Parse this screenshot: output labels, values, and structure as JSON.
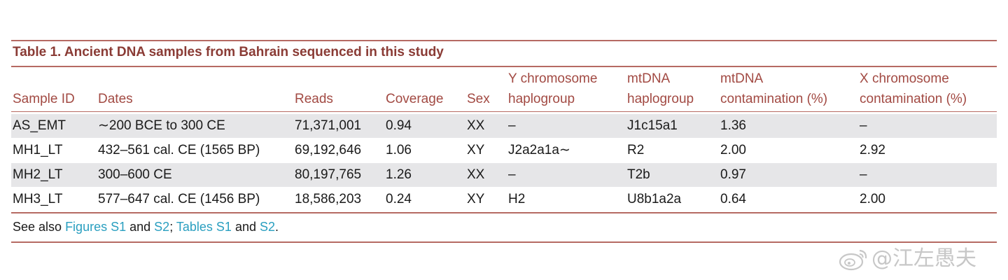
{
  "table": {
    "title": "Table 1.  Ancient DNA samples from Bahrain sequenced in this study",
    "headers": {
      "sample_id": "Sample ID",
      "dates": "Dates",
      "reads": "Reads",
      "coverage": "Coverage",
      "sex": "Sex",
      "y_line1": "Y chromosome",
      "y_line2": "haplogroup",
      "mt_line1": "mtDNA",
      "mt_line2": "haplogroup",
      "mtc_line1": "mtDNA",
      "mtc_line2": "contamination (%)",
      "xc_line1": "X chromosome",
      "xc_line2": "contamination (%)"
    },
    "rows": [
      {
        "sample_id": "AS_EMT",
        "dates": "∼200 BCE to 300 CE",
        "reads": "71,371,001",
        "coverage": "0.94",
        "sex": "XX",
        "y_haplogroup": "–",
        "mt_haplogroup": "J1c15a1",
        "mt_contamination": "1.36",
        "x_contamination": "–"
      },
      {
        "sample_id": "MH1_LT",
        "dates": "432–561 cal. CE (1565 BP)",
        "reads": "69,192,646",
        "coverage": "1.06",
        "sex": "XY",
        "y_haplogroup": "J2a2a1a∼",
        "mt_haplogroup": "R2",
        "mt_contamination": "2.00",
        "x_contamination": "2.92"
      },
      {
        "sample_id": "MH2_LT",
        "dates": "300–600 CE",
        "reads": "80,197,765",
        "coverage": "1.26",
        "sex": "XX",
        "y_haplogroup": "–",
        "mt_haplogroup": "T2b",
        "mt_contamination": "0.97",
        "x_contamination": "–"
      },
      {
        "sample_id": "MH3_LT",
        "dates": "577–647 cal. CE (1456 BP)",
        "reads": "18,586,203",
        "coverage": "0.24",
        "sex": "XY",
        "y_haplogroup": "H2",
        "mt_haplogroup": "U8b1a2a",
        "mt_contamination": "0.64",
        "x_contamination": "2.00"
      }
    ],
    "footnote": {
      "prefix": "See also ",
      "link1": "Figures S1",
      "and1": " and ",
      "link2": "S2",
      "sep": "; ",
      "link3": "Tables S1",
      "and2": " and ",
      "link4": "S2",
      "end": "."
    }
  },
  "colors": {
    "title": "#8a3b35",
    "header": "#a24a43",
    "rule": "#b66a63",
    "row_shade": "#e6e6e8",
    "link": "#2a9fc0"
  },
  "watermark": {
    "icon": "weibo-logo-icon",
    "text": "@江左愚夫"
  }
}
